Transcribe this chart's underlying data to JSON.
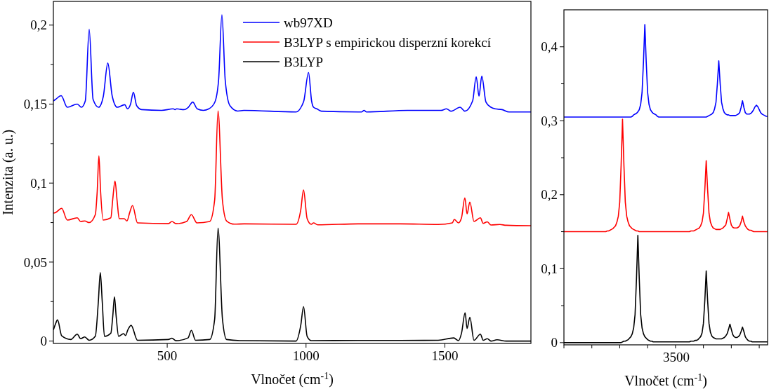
{
  "chart_data": [
    {
      "type": "line",
      "xlabel": "Vlnočet (cm$^{-1}$)",
      "ylabel": "Intenzita (a. u.)",
      "legend": "top",
      "line_style": "solid",
      "marker": "none",
      "grid": false,
      "xlim": [
        90,
        1810
      ],
      "xticks": [
        500,
        1000,
        1500
      ],
      "ylim": [
        -0.0015,
        0.215
      ],
      "yticks": [
        0,
        {
          "value": 0.025,
          "label": null
        },
        {
          "value": 0.05,
          "label": "0,05"
        },
        {
          "value": 0.075,
          "label": null
        },
        {
          "value": 0.1,
          "label": "0,1"
        },
        {
          "value": 0.125,
          "label": null
        },
        {
          "value": 0.15,
          "label": "0,15"
        },
        {
          "value": 0.175,
          "label": null
        },
        {
          "value": 0.2,
          "label": "0,2"
        }
      ],
      "series": [
        {
          "name": "wb97XD",
          "color": "#0000ff",
          "x": [
            90,
            98,
            118,
            140,
            176,
            191,
            205,
            219,
            233,
            253,
            270,
            286,
            302,
            320,
            347,
            357,
            368,
            378,
            390,
            408,
            480,
            522,
            528,
            534,
            560,
            576,
            592,
            608,
            630,
            650,
            671,
            685,
            697,
            709,
            726,
            754,
            776,
            964,
            985,
            992,
            1009,
            1020,
            1027,
            1039,
            1055,
            1200,
            1209,
            1218,
            1365,
            1486,
            1506,
            1522,
            1555,
            1572,
            1600,
            1613,
            1623,
            1633,
            1648,
            1666,
            1681,
            1706,
            1731,
            1810
          ],
          "values": [
            0.152,
            0.153,
            0.1553,
            0.148,
            0.15,
            0.148,
            0.152,
            0.1973,
            0.153,
            0.148,
            0.155,
            0.176,
            0.155,
            0.148,
            0.1496,
            0.147,
            0.15,
            0.1575,
            0.149,
            0.1465,
            0.146,
            0.147,
            0.1465,
            0.147,
            0.1465,
            0.148,
            0.1513,
            0.147,
            0.146,
            0.147,
            0.151,
            0.165,
            0.2066,
            0.165,
            0.149,
            0.1456,
            0.146,
            0.145,
            0.149,
            0.152,
            0.17,
            0.152,
            0.148,
            0.147,
            0.1455,
            0.145,
            0.146,
            0.145,
            0.146,
            0.146,
            0.147,
            0.1455,
            0.148,
            0.1455,
            0.152,
            0.1673,
            0.155,
            0.1677,
            0.1513,
            0.148,
            0.147,
            0.1465,
            0.145,
            0.145
          ]
        },
        {
          "name": "B3LYP s empirickou disperzní korekcí",
          "color": "#ff0000",
          "x": [
            90,
            98,
            120,
            140,
            176,
            188,
            203,
            219,
            241,
            248,
            254,
            260,
            269,
            297,
            304,
            312,
            320,
            327,
            345,
            355,
            365,
            375,
            393,
            504,
            517,
            532,
            570,
            587,
            607,
            653,
            671,
            683,
            699,
            714,
            742,
            777,
            964,
            981,
            991,
            1004,
            1019,
            1027,
            1042,
            1193,
            1340,
            1476,
            1527,
            1534,
            1549,
            1560,
            1572,
            1580,
            1590,
            1605,
            1628,
            1638,
            1653,
            1666,
            1698,
            1721,
            1810
          ],
          "values": [
            0.081,
            0.0814,
            0.084,
            0.0766,
            0.078,
            0.0757,
            0.076,
            0.075,
            0.08,
            0.095,
            0.1173,
            0.095,
            0.0766,
            0.078,
            0.09,
            0.1013,
            0.088,
            0.0775,
            0.0775,
            0.076,
            0.0814,
            0.0858,
            0.0748,
            0.0743,
            0.0757,
            0.0743,
            0.0757,
            0.08,
            0.0748,
            0.0757,
            0.0894,
            0.1457,
            0.089,
            0.076,
            0.074,
            0.0742,
            0.0739,
            0.083,
            0.0956,
            0.0775,
            0.0739,
            0.0748,
            0.0736,
            0.0742,
            0.0742,
            0.0738,
            0.0748,
            0.077,
            0.0748,
            0.078,
            0.0907,
            0.0805,
            0.088,
            0.0757,
            0.078,
            0.0745,
            0.0755,
            0.0735,
            0.0738,
            0.0733,
            0.073
          ]
        },
        {
          "name": "B3LYP",
          "color": "#000000",
          "x": [
            90,
            98,
            105,
            120,
            153,
            176,
            188,
            203,
            219,
            241,
            252,
            259,
            266,
            274,
            297,
            304,
            310,
            316,
            325,
            343,
            350,
            358,
            370,
            393,
            504,
            517,
            532,
            575,
            587,
            602,
            653,
            671,
            683,
            699,
            714,
            762,
            964,
            981,
            991,
            1004,
            1019,
            1188,
            1340,
            1476,
            1532,
            1549,
            1560,
            1573,
            1580,
            1590,
            1605,
            1628,
            1638,
            1653,
            1666,
            1688,
            1721,
            1810
          ],
          "values": [
            0.007,
            0.011,
            0.0134,
            0.0033,
            0.001,
            0.0044,
            0.0015,
            0.0026,
            0.0005,
            0.003,
            0.025,
            0.0434,
            0.025,
            0.003,
            0.005,
            0.016,
            0.028,
            0.016,
            0.003,
            0.0047,
            0.0035,
            0.007,
            0.01,
            0.0005,
            0.001,
            0.0018,
            0.0002,
            0.002,
            0.0068,
            0.0005,
            0.001,
            0.014,
            0.0715,
            0.014,
            0.001,
            0.0003,
            0,
            0.01,
            0.0218,
            0.003,
            0.0003,
            0.0004,
            0.0004,
            0.0005,
            0.002,
            0.0003,
            0.005,
            0.0179,
            0.008,
            0.015,
            0.0005,
            0.0044,
            0.0005,
            0.0015,
            0,
            0.0008,
            0,
            0
          ]
        }
      ]
    },
    {
      "type": "line",
      "xlabel": "Vlnočet (cm$^{-1}$)",
      "line_style": "solid",
      "marker": "none",
      "grid": false,
      "annotations": [
        "3500"
      ],
      "categories": [
        null,
        null,
        null,
        null,
        null,
        null,
        null,
        null,
        null,
        null,
        null,
        null,
        null,
        null,
        null,
        null,
        null,
        null,
        null,
        null,
        null,
        null,
        null,
        null,
        null,
        null,
        null,
        null,
        null,
        null,
        null,
        null,
        null,
        null,
        null,
        null,
        null,
        null,
        null,
        null,
        null,
        null,
        null,
        null,
        null,
        null,
        null,
        null,
        null,
        null,
        null,
        null,
        null,
        null,
        null,
        null,
        null,
        null,
        null,
        null,
        null,
        null,
        null,
        null,
        null,
        null,
        null,
        null,
        null,
        null,
        null,
        null,
        null,
        null,
        null,
        null,
        null,
        null,
        null,
        null,
        null,
        null,
        null,
        null,
        null,
        null,
        null,
        null,
        null,
        null,
        null,
        null,
        null,
        null,
        null,
        null,
        null,
        null,
        null,
        null,
        null,
        null,
        null,
        null,
        null,
        null,
        null,
        null,
        null,
        null,
        null,
        null,
        null,
        null,
        null,
        null,
        null,
        null,
        null,
        null,
        null,
        null,
        null,
        null,
        null,
        null,
        null,
        null,
        null,
        null,
        null,
        null,
        null,
        null,
        null,
        null,
        null,
        null,
        null,
        null,
        null,
        null,
        null,
        null,
        null,
        null,
        null
      ],
      "ylim": [
        -0.003,
        0.45
      ],
      "yticks": [
        0,
        {
          "value": 0.05,
          "label": null
        },
        {
          "value": 0.1,
          "label": "0,1"
        },
        {
          "value": 0.15,
          "label": null
        },
        {
          "value": 0.2,
          "label": "0,2"
        },
        {
          "value": 0.25,
          "label": null
        },
        {
          "value": 0.3,
          "label": "0,3"
        },
        {
          "value": 0.35,
          "label": null
        },
        {
          "value": 0.4,
          "label": "0,4"
        }
      ],
      "series": [
        {
          "color": "#0000ff",
          "values": [
            0.305,
            0.305,
            0.305,
            0.305,
            0.305,
            0.305,
            0.305,
            0.305,
            0.305,
            0.305,
            0.305,
            0.305,
            0.305,
            0.305,
            0.305,
            0.305,
            0.305,
            0.305,
            0.305,
            0.305,
            0.305,
            0.305,
            0.305,
            0.305,
            0.305,
            0.305,
            0.305,
            0.305,
            0.305,
            0.305,
            0.305,
            0.305,
            0.305,
            0.305,
            0.305,
            0.305,
            0.305,
            0.305,
            0.305,
            0.305,
            0.305,
            0.305,
            0.305,
            0.305,
            0.305,
            0.305,
            0.305,
            0.305,
            0.305,
            0.306,
            0.308,
            0.309,
            0.31,
            0.312,
            0.315,
            0.322,
            0.338,
            0.379,
            0.43,
            0.379,
            0.338,
            0.322,
            0.315,
            0.312,
            0.31,
            0.309,
            0.308,
            0.306,
            0.305,
            0.305,
            0.305,
            0.305,
            0.305,
            0.305,
            0.305,
            0.305,
            0.305,
            0.305,
            0.305,
            0.305,
            0.305,
            0.305,
            0.305,
            0.305,
            0.305,
            0.305,
            0.305,
            0.305,
            0.305,
            0.305,
            0.305,
            0.305,
            0.305,
            0.305,
            0.305,
            0.305,
            0.305,
            0.305,
            0.305,
            0.305,
            0.305,
            0.305,
            0.305,
            0.306,
            0.307,
            0.308,
            0.309,
            0.311,
            0.316,
            0.325,
            0.35,
            0.381,
            0.35,
            0.325,
            0.316,
            0.311,
            0.309,
            0.308,
            0.308,
            0.307,
            0.307,
            0.307,
            0.307,
            0.307,
            0.308,
            0.309,
            0.311,
            0.318,
            0.327,
            0.318,
            0.311,
            0.309,
            0.309,
            0.309,
            0.31,
            0.312,
            0.315,
            0.319,
            0.321,
            0.319,
            0.315,
            0.311,
            0.309,
            0.308,
            0.307,
            0.306,
            0.306
          ]
        },
        {
          "color": "#ff0000",
          "values": [
            0.15,
            0.15,
            0.15,
            0.15,
            0.15,
            0.15,
            0.15,
            0.15,
            0.15,
            0.15,
            0.15,
            0.15,
            0.15,
            0.15,
            0.15,
            0.15,
            0.15,
            0.15,
            0.15,
            0.15,
            0.15,
            0.15,
            0.15,
            0.15,
            0.15,
            0.15,
            0.15,
            0.15,
            0.15,
            0.15,
            0.15,
            0.151,
            0.151,
            0.152,
            0.153,
            0.154,
            0.156,
            0.158,
            0.163,
            0.171,
            0.19,
            0.24,
            0.302,
            0.24,
            0.19,
            0.171,
            0.163,
            0.158,
            0.156,
            0.154,
            0.153,
            0.152,
            0.151,
            0.151,
            0.15,
            0.15,
            0.15,
            0.15,
            0.15,
            0.15,
            0.15,
            0.15,
            0.15,
            0.15,
            0.15,
            0.15,
            0.15,
            0.15,
            0.15,
            0.15,
            0.15,
            0.15,
            0.15,
            0.15,
            0.15,
            0.15,
            0.15,
            0.15,
            0.15,
            0.15,
            0.15,
            0.15,
            0.15,
            0.15,
            0.15,
            0.15,
            0.15,
            0.15,
            0.15,
            0.15,
            0.15,
            0.151,
            0.151,
            0.151,
            0.152,
            0.153,
            0.154,
            0.155,
            0.158,
            0.163,
            0.175,
            0.207,
            0.246,
            0.207,
            0.175,
            0.163,
            0.158,
            0.155,
            0.154,
            0.153,
            0.153,
            0.153,
            0.153,
            0.154,
            0.155,
            0.157,
            0.159,
            0.167,
            0.176,
            0.167,
            0.159,
            0.156,
            0.155,
            0.155,
            0.155,
            0.156,
            0.158,
            0.163,
            0.171,
            0.163,
            0.158,
            0.155,
            0.153,
            0.152,
            0.152,
            0.151,
            0.15,
            0.15,
            0.15,
            0.15,
            0.15,
            0.15,
            0.15,
            0.15,
            0.15,
            0.15,
            0.15
          ]
        },
        {
          "color": "#000000",
          "values": [
            0,
            0,
            0,
            0,
            0,
            0,
            0,
            0,
            0,
            0,
            0,
            0,
            0,
            0,
            0,
            0,
            0,
            0,
            0,
            0,
            0,
            0,
            0,
            0,
            0,
            0,
            0,
            0,
            0,
            0,
            0,
            0,
            0,
            0,
            0,
            0,
            0,
            0,
            0,
            0,
            0,
            0,
            0.001,
            0.002,
            0.002,
            0.003,
            0.004,
            0.006,
            0.008,
            0.012,
            0.02,
            0.038,
            0.086,
            0.145,
            0.086,
            0.038,
            0.02,
            0.012,
            0.008,
            0.006,
            0.004,
            0.003,
            0.002,
            0.002,
            0.001,
            0.001,
            0.001,
            0.001,
            0.001,
            0.001,
            0.001,
            0.001,
            0.001,
            0.001,
            0.001,
            0.001,
            0.001,
            0.001,
            0.001,
            0.001,
            0.001,
            0.001,
            0.001,
            0.001,
            0.001,
            0.001,
            0.001,
            0.001,
            0.001,
            0.001,
            0.001,
            0.002,
            0.002,
            0.002,
            0.003,
            0.003,
            0.004,
            0.006,
            0.008,
            0.013,
            0.026,
            0.057,
            0.097,
            0.057,
            0.026,
            0.014,
            0.009,
            0.007,
            0.006,
            0.005,
            0.005,
            0.005,
            0.005,
            0.005,
            0.006,
            0.007,
            0.009,
            0.012,
            0.018,
            0.025,
            0.018,
            0.011,
            0.008,
            0.007,
            0.007,
            0.008,
            0.01,
            0.015,
            0.021,
            0.015,
            0.008,
            0.005,
            0.003,
            0.002,
            0.002,
            0.001,
            0.001,
            0.001,
            0.001,
            0.001,
            0.001,
            0.001,
            0.001,
            0.001,
            0.001,
            0.001,
            0.001
          ]
        }
      ]
    }
  ]
}
